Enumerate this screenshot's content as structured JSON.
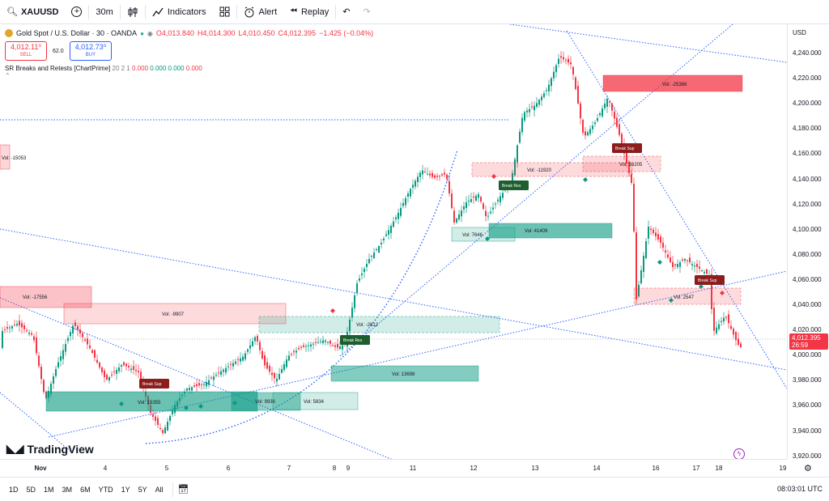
{
  "topbar": {
    "symbol": "XAUUSD",
    "interval": "30m",
    "indicators_label": "Indicators",
    "alert_label": "Alert",
    "replay_label": "Replay"
  },
  "legend": {
    "title": "Gold Spot / U.S. Dollar · 30 · OANDA",
    "open": "O4,013.840",
    "high": "H4,014.300",
    "low": "L4,010.450",
    "close": "C4,012.395",
    "change": "−1.425 (−0.04%)",
    "sell_price": "4,012.11⁰",
    "sell_label": "SELL",
    "spread": "62.0",
    "buy_price": "4,012.73⁰",
    "buy_label": "BUY",
    "indicator": "SR Breaks and Retests [ChartPrime]",
    "indicator_params": "20 2 1",
    "indicator_v1": "0.000",
    "indicator_v2": "0.000",
    "indicator_v3": "0.000",
    "indicator_v4": "0.000"
  },
  "price_axis": {
    "currency": "USD",
    "ticks": [
      "4,240.000",
      "4,220.000",
      "4,200.000",
      "4,180.000",
      "4,160.000",
      "4,140.000",
      "4,120.000",
      "4,100.000",
      "4,080.000",
      "4,060.000",
      "4,040.000",
      "4,020.000",
      "4,000.000",
      "3,980.000",
      "3,960.000",
      "3,940.000",
      "3,920.000"
    ],
    "current_price": "4,012.395",
    "countdown": "26:59"
  },
  "time_axis": {
    "labels": [
      "Nov",
      "4",
      "5",
      "6",
      "7",
      "8",
      "9",
      "11",
      "12",
      "13",
      "14",
      "16",
      "17",
      "18",
      "19"
    ]
  },
  "bottombar": {
    "ranges": [
      "1D",
      "5D",
      "1M",
      "3M",
      "6M",
      "YTD",
      "1Y",
      "5Y",
      "All"
    ],
    "clock": "08:03:01 UTC"
  },
  "logo": "TradingView",
  "chart_boxes": [
    {
      "label": "Vol: -25366",
      "color": "red"
    },
    {
      "label": "Vol: -15053",
      "color": "red"
    },
    {
      "label": "Vol: -11920",
      "color": "red"
    },
    {
      "label": "Vol: 16205",
      "color": "red"
    },
    {
      "label": "Vol: 7646",
      "color": "green"
    },
    {
      "label": "Vol: 41409",
      "color": "green"
    },
    {
      "label": "Vol: -17556",
      "color": "red"
    },
    {
      "label": "Vol: -9907",
      "color": "red"
    },
    {
      "label": "Vol: -2812",
      "color": "green"
    },
    {
      "label": "Vol: 13698",
      "color": "green"
    },
    {
      "label": "Vol: 15355",
      "color": "green"
    },
    {
      "label": "Vol: 9936",
      "color": "green"
    },
    {
      "label": "Vol: 5834",
      "color": "green"
    },
    {
      "label": "Vol: 2547",
      "color": "red"
    }
  ],
  "chart_tags": [
    {
      "label": "Break Sup",
      "color": "dark-red"
    },
    {
      "label": "Break Res",
      "color": "dark-green"
    },
    {
      "label": "Break Res",
      "color": "dark-green"
    },
    {
      "label": "Break Sup",
      "color": "dark-red"
    },
    {
      "label": "Break Sup",
      "color": "dark-red"
    }
  ]
}
